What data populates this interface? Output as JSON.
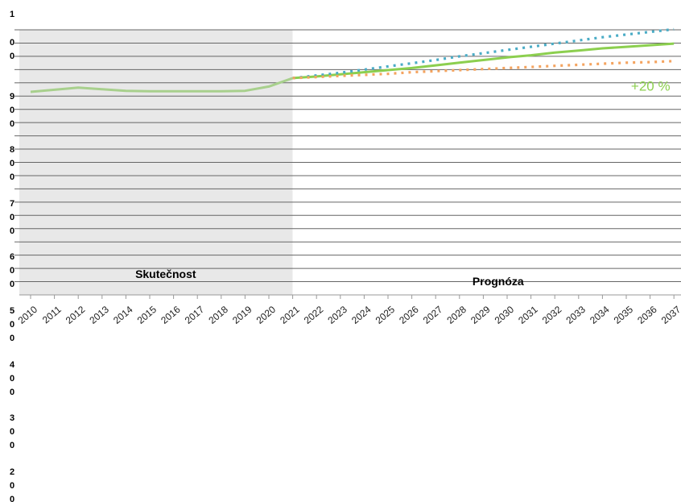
{
  "chart_data": {
    "type": "line",
    "x": [
      2010,
      2011,
      2012,
      2013,
      2014,
      2015,
      2016,
      2017,
      2018,
      2019,
      2020,
      2021,
      2022,
      2023,
      2024,
      2025,
      2026,
      2027,
      2028,
      2029,
      2030,
      2031,
      2032,
      2033,
      2034,
      2035,
      2036,
      2037
    ],
    "x_tick_labels": [
      "2010",
      "2011",
      "2012",
      "2013",
      "2014",
      "2015",
      "2016",
      "2017",
      "2018",
      "2019",
      "2020",
      "2021",
      "2022",
      "2023",
      "2024",
      "2025",
      "2026",
      "2027",
      "2028",
      "2029",
      "2030",
      "2031",
      "2032",
      "2033",
      "2034",
      "2035",
      "2036",
      "2037"
    ],
    "y_tick_labels": [
      "1\n0\n0",
      "9\n0\n0",
      "8\n0\n0",
      "7\n0\n0",
      "6\n0\n0",
      "5\n0\n0",
      "4\n0\n0",
      "3\n0\n0",
      "2\n0\n0"
    ],
    "ylim": [
      500,
      1000
    ],
    "gridlines_y": [
      525,
      550,
      575,
      600,
      625,
      650,
      675,
      700,
      725,
      750,
      775,
      800,
      825,
      850,
      875,
      900,
      925,
      950,
      975,
      1000
    ],
    "regions": [
      {
        "label": "Skutečnost",
        "from": 2010,
        "to": 2021,
        "color": "#e8e8e8"
      },
      {
        "label": "Prognóza",
        "from": 2021,
        "to": 2037,
        "color": "#ffffff"
      }
    ],
    "series": [
      {
        "style": "solid",
        "color": "#a8d08d",
        "x": [
          2010,
          2011,
          2012,
          2013,
          2014,
          2015,
          2016,
          2017,
          2018,
          2019,
          2020,
          2021
        ],
        "y": [
          883,
          887,
          891,
          888,
          885,
          884,
          884,
          884,
          884,
          885,
          893,
          909
        ]
      },
      {
        "style": "solid",
        "color": "#8ccf4f",
        "x": [
          2021,
          2022,
          2023,
          2024,
          2025,
          2026,
          2027,
          2028,
          2029,
          2030,
          2031,
          2032,
          2033,
          2034,
          2035,
          2036,
          2037
        ],
        "y": [
          909,
          912,
          916,
          920,
          924,
          928,
          933,
          938,
          943,
          948,
          952,
          957,
          961,
          965,
          968,
          971,
          974
        ]
      },
      {
        "style": "dotted",
        "color": "#4aacc6",
        "x": [
          2021,
          2022,
          2023,
          2024,
          2025,
          2026,
          2027,
          2028,
          2029,
          2030,
          2031,
          2032,
          2033,
          2034,
          2035,
          2036,
          2037
        ],
        "y": [
          909,
          914,
          919,
          925,
          931,
          937,
          943,
          950,
          956,
          962,
          968,
          974,
          980,
          986,
          991,
          996,
          1001
        ]
      },
      {
        "style": "dotted",
        "color": "#f4a460",
        "x": [
          2021,
          2022,
          2023,
          2024,
          2025,
          2026,
          2027,
          2028,
          2029,
          2030,
          2031,
          2032,
          2033,
          2034,
          2035,
          2036,
          2037
        ],
        "y": [
          909,
          911,
          913,
          915,
          917,
          920,
          922,
          924,
          926,
          928,
          930,
          932,
          934,
          936,
          938,
          939,
          941
        ]
      }
    ],
    "annotations": [
      {
        "text": "+20 %",
        "x": 2035.2,
        "y": 885
      }
    ]
  }
}
